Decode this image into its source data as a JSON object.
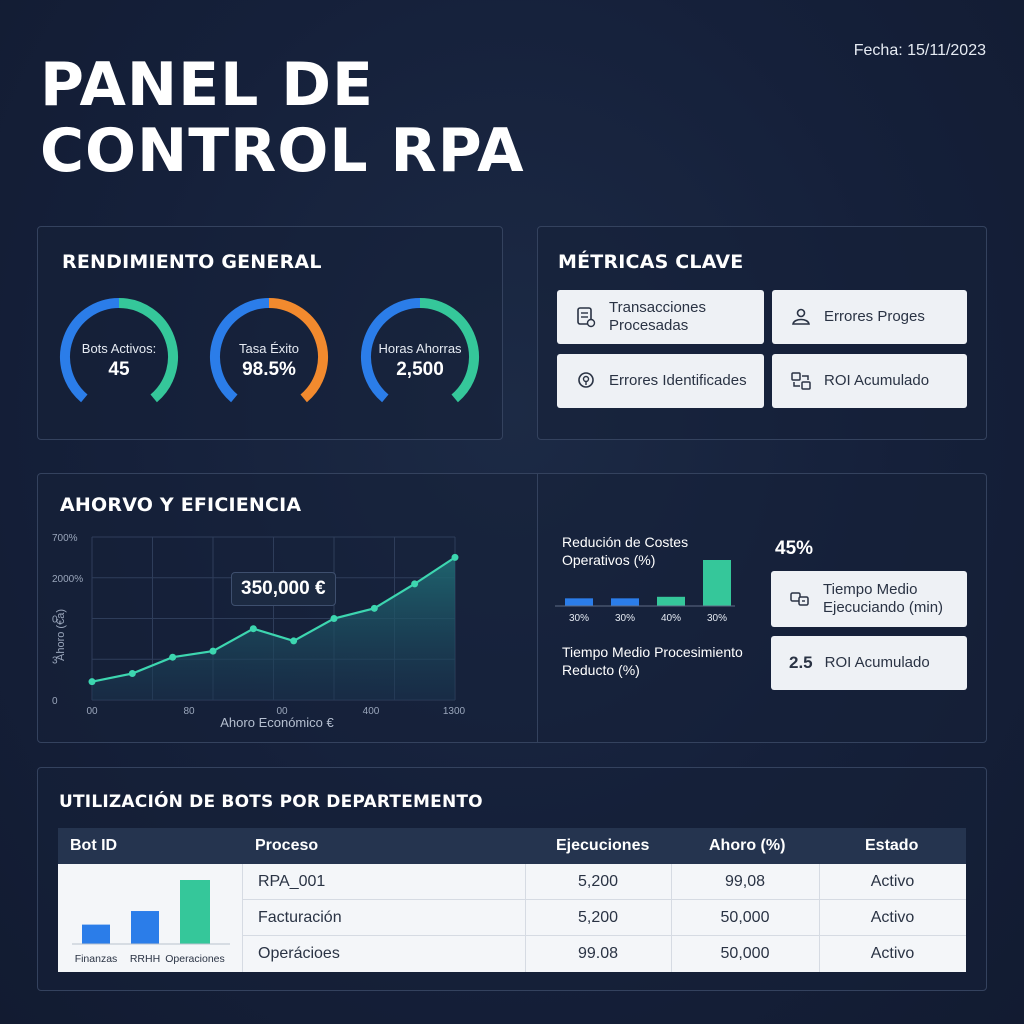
{
  "date": "Fecha: 15/11/2023",
  "title_line1": "PANEL DE",
  "title_line2": "CONTROL RPA",
  "performance": {
    "title": "RENDIMIENTO GENERAL",
    "gauges": [
      {
        "label": "Bots Activos:",
        "value": "45",
        "fraction": 0.5,
        "color1": "#2b7de9",
        "color2": "#35c79a"
      },
      {
        "label": "Tasa Éxito",
        "value": "98.5%",
        "fraction": 0.5,
        "color1": "#2b7de9",
        "color2": "#f28a2e"
      },
      {
        "label": "Horas Ahorras",
        "value": "2,500",
        "fraction": 0.5,
        "color1": "#2b7de9",
        "color2": "#35c79a"
      }
    ]
  },
  "metrics": {
    "title": "MÉTRICAS CLAVE",
    "cards": [
      {
        "icon": "document-list-icon",
        "label": "Transacciones Procesadas"
      },
      {
        "icon": "users-icon",
        "label": "Errores Proges"
      },
      {
        "icon": "location-pin-icon",
        "label": "Errores Identificades"
      },
      {
        "icon": "money-flow-icon",
        "label": "ROI Acumulado"
      }
    ]
  },
  "savings": {
    "title": "AHORVO Y EFICIENCIA",
    "callout": "350,000 €",
    "xlabel": "Ahoro Económico €",
    "ylabel": "Ahoro (€a)",
    "cost_reduction_label": "Redución de Costes Operativos (%)",
    "time_reduction_label": "Tiempo Medio Procesimiento Reducto (%)",
    "big_percent": "45%",
    "card_time": {
      "icon": "timer-icon",
      "label": "Tiempo Medio Ejecuciando (min)"
    },
    "card_roi": {
      "value": "2.5",
      "label": "ROI Acumulado"
    }
  },
  "chart_data": [
    {
      "type": "area",
      "x": [
        0,
        1,
        2,
        3,
        4,
        5,
        6,
        7,
        8,
        9
      ],
      "values": [
        0.9,
        1.3,
        2.1,
        2.4,
        3.5,
        2.9,
        4.0,
        4.5,
        5.7,
        7.0
      ],
      "y_tick_labels": [
        "0",
        "3",
        "0",
        "2000%",
        "700%"
      ],
      "x_tick_labels": [
        "00",
        "80",
        "00",
        "400",
        "1300"
      ],
      "ylim": [
        0,
        8
      ],
      "grid": true,
      "line_color": "#3dd6b0"
    },
    {
      "type": "bar",
      "categories": [
        "30%",
        "30%",
        "40%",
        "30%"
      ],
      "values": [
        1,
        1,
        1.2,
        6
      ],
      "colors": [
        "#2b7de9",
        "#2b7de9",
        "#35c79a",
        "#35c79a"
      ]
    },
    {
      "type": "bar",
      "categories": [
        "Finanzas",
        "RRHH",
        "Operaciones"
      ],
      "values": [
        1,
        1.7,
        3.3
      ],
      "colors": [
        "#2b7de9",
        "#2b7de9",
        "#35c79a"
      ]
    }
  ],
  "table": {
    "title": "UTILIZACIÓN DE BOTS POR DEPARTEMENTO",
    "headers": [
      "Bot ID",
      "Proceso",
      "Ejecuciones",
      "Ahoro (%)",
      "Estado"
    ],
    "rows": [
      [
        "RPA_001",
        "5,200",
        "99,08",
        "Activo"
      ],
      [
        "Facturación",
        "5,200",
        "50,000",
        "Activo"
      ],
      [
        "Operácioes",
        "99.08",
        "50,000",
        "Activo"
      ]
    ]
  }
}
